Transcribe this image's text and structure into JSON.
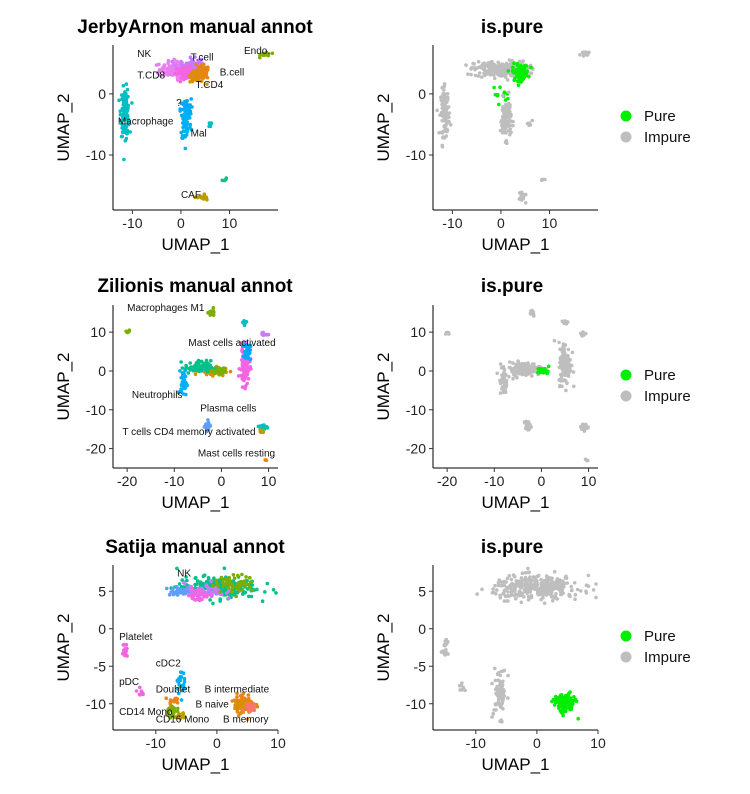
{
  "colors": {
    "pure": "#00ee00",
    "impure": "#bebebe"
  },
  "legend": {
    "items": [
      {
        "label": "Pure",
        "color": "#00ee00"
      },
      {
        "label": "Impure",
        "color": "#bebebe"
      }
    ]
  },
  "chart_data": [
    {
      "type": "scatter",
      "title": "JerbyArnon manual annot",
      "xlabel": "UMAP_1",
      "ylabel": "UMAP_2",
      "xlim": [
        -14,
        20
      ],
      "ylim": [
        -19,
        8
      ],
      "xticks": [
        -10,
        0,
        10
      ],
      "yticks": [
        -10,
        0
      ],
      "clusters": [
        {
          "label": "NK",
          "color": "#e87ef0",
          "cx": 0,
          "cy": 4,
          "rx": 4,
          "ry": 1.2,
          "n": 160
        },
        {
          "label": "T.cell",
          "color": "#c77cff",
          "cx": 2,
          "cy": 4.5,
          "rx": 2,
          "ry": 1.2,
          "n": 90
        },
        {
          "label": "T.CD8",
          "color": "#f564e3",
          "cx": 1,
          "cy": 3.5,
          "rx": 2,
          "ry": 0.8,
          "n": 60
        },
        {
          "label": "T.CD4",
          "color": "#d89000",
          "cx": 3.5,
          "cy": 3,
          "rx": 1.5,
          "ry": 1.0,
          "n": 70
        },
        {
          "label": "B.cell",
          "color": "#e68613",
          "cx": 4.5,
          "cy": 3.5,
          "rx": 1.2,
          "ry": 1.0,
          "n": 60
        },
        {
          "label": "Endo.",
          "color": "#7cae00",
          "cx": 17.5,
          "cy": 6.5,
          "rx": 1.0,
          "ry": 0.4,
          "n": 15
        },
        {
          "label": "Macrophage",
          "color": "#00bfc4",
          "cx": -11.5,
          "cy": -3,
          "rx": 0.8,
          "ry": 3.5,
          "n": 110
        },
        {
          "label": "?",
          "color": "#00a9ff",
          "cx": 1,
          "cy": -2.5,
          "rx": 1,
          "ry": 1.5,
          "n": 50
        },
        {
          "label": "Mal",
          "color": "#00b0f6",
          "cx": 1,
          "cy": -5,
          "rx": 1.0,
          "ry": 2.5,
          "n": 60
        },
        {
          "label": "CAF",
          "color": "#bb9d00",
          "cx": 4.5,
          "cy": -17,
          "rx": 1.0,
          "ry": 0.6,
          "n": 15
        },
        {
          "label": "",
          "color": "#00c08b",
          "cx": 9,
          "cy": -14,
          "rx": 0.4,
          "ry": 0.4,
          "n": 4
        },
        {
          "label": "",
          "color": "#00bfc4",
          "cx": 6,
          "cy": -5,
          "rx": 0.5,
          "ry": 0.5,
          "n": 6
        }
      ],
      "annotations": [
        {
          "text": "NK",
          "x": -9,
          "y": 6
        },
        {
          "text": "T.cell",
          "x": 2,
          "y": 5.5
        },
        {
          "text": "Endo.",
          "x": 13,
          "y": 6.5
        },
        {
          "text": "B.cell",
          "x": 8,
          "y": 3
        },
        {
          "text": "T.CD8",
          "x": -9,
          "y": 2.5
        },
        {
          "text": "T.CD4",
          "x": 3,
          "y": 1
        },
        {
          "text": "?",
          "x": -1,
          "y": -2
        },
        {
          "text": "Macrophage",
          "x": -13,
          "y": -5
        },
        {
          "text": "Mal",
          "x": 2,
          "y": -7
        },
        {
          "text": "CAF",
          "x": 0,
          "y": -17
        }
      ]
    },
    {
      "type": "scatter",
      "title": "is.pure",
      "xlabel": "UMAP_1",
      "ylabel": "UMAP_2",
      "xlim": [
        -14,
        20
      ],
      "ylim": [
        -19,
        8
      ],
      "xticks": [
        -10,
        0,
        10
      ],
      "yticks": [
        -10,
        0
      ],
      "clusters": [
        {
          "label": "Impure",
          "color": "#bebebe",
          "cx": 0,
          "cy": 4,
          "rx": 5,
          "ry": 1.2,
          "n": 230
        },
        {
          "label": "Pure",
          "color": "#00ee00",
          "cx": 4,
          "cy": 3.5,
          "rx": 1.5,
          "ry": 1.2,
          "n": 90
        },
        {
          "label": "Pure",
          "color": "#00ee00",
          "cx": 0,
          "cy": 0,
          "rx": 1.5,
          "ry": 1.2,
          "n": 12
        },
        {
          "label": "Impure",
          "color": "#bebebe",
          "cx": 17.5,
          "cy": 6.5,
          "rx": 1.0,
          "ry": 0.4,
          "n": 15
        },
        {
          "label": "Impure",
          "color": "#bebebe",
          "cx": -11.5,
          "cy": -3,
          "rx": 0.8,
          "ry": 3.5,
          "n": 110
        },
        {
          "label": "Impure",
          "color": "#bebebe",
          "cx": 1,
          "cy": -4,
          "rx": 1.0,
          "ry": 3.0,
          "n": 100
        },
        {
          "label": "Impure",
          "color": "#bebebe",
          "cx": 4.5,
          "cy": -17,
          "rx": 1.0,
          "ry": 0.6,
          "n": 15
        },
        {
          "label": "Impure",
          "color": "#bebebe",
          "cx": 9,
          "cy": -14,
          "rx": 0.4,
          "ry": 0.4,
          "n": 4
        },
        {
          "label": "Impure",
          "color": "#bebebe",
          "cx": 6,
          "cy": -5,
          "rx": 0.5,
          "ry": 0.5,
          "n": 6
        }
      ],
      "annotations": []
    },
    {
      "type": "scatter",
      "title": "Zilionis manual annot",
      "xlabel": "UMAP_1",
      "ylabel": "UMAP_2",
      "xlim": [
        -23,
        12
      ],
      "ylim": [
        -25,
        17
      ],
      "xticks": [
        -20,
        -10,
        0,
        10
      ],
      "yticks": [
        -20,
        -10,
        0,
        10
      ],
      "clusters": [
        {
          "label": "Macrophages M1",
          "color": "#7cae00",
          "cx": -2,
          "cy": 15,
          "rx": 0.6,
          "ry": 0.8,
          "n": 20
        },
        {
          "label": "",
          "color": "#7cae00",
          "cx": -20,
          "cy": 10,
          "rx": 0.5,
          "ry": 0.5,
          "n": 8
        },
        {
          "label": "",
          "color": "#00bfc4",
          "cx": 5,
          "cy": 12.5,
          "rx": 0.6,
          "ry": 0.6,
          "n": 10
        },
        {
          "label": "",
          "color": "#c77cff",
          "cx": 9,
          "cy": 9.5,
          "rx": 0.6,
          "ry": 0.6,
          "n": 8
        },
        {
          "label": "Mast cells activated",
          "color": "#f564e3",
          "cx": 5,
          "cy": 1,
          "rx": 1.0,
          "ry": 4.5,
          "n": 80
        },
        {
          "label": "",
          "color": "#00a9ff",
          "cx": 5.5,
          "cy": 5,
          "rx": 0.6,
          "ry": 2,
          "n": 40
        },
        {
          "label": "",
          "color": "#d89000",
          "cx": -2,
          "cy": 0,
          "rx": 2.5,
          "ry": 1.0,
          "n": 70
        },
        {
          "label": "",
          "color": "#00c08b",
          "cx": -5,
          "cy": 1,
          "rx": 2.5,
          "ry": 1.5,
          "n": 70
        },
        {
          "label": "",
          "color": "#7cae00",
          "cx": 0,
          "cy": 0,
          "rx": 1.5,
          "ry": 0.8,
          "n": 30
        },
        {
          "label": "Neutrophils",
          "color": "#00b0f6",
          "cx": -8,
          "cy": -3,
          "rx": 0.6,
          "ry": 3,
          "n": 40
        },
        {
          "label": "Plasma cells",
          "color": "#619cff",
          "cx": -3,
          "cy": -14,
          "rx": 0.6,
          "ry": 1.2,
          "n": 20
        },
        {
          "label": "T cells CD4 memory activated",
          "color": "#00bfc4",
          "cx": 9,
          "cy": -14.5,
          "rx": 0.8,
          "ry": 0.8,
          "n": 15
        },
        {
          "label": "Mast cells resting",
          "color": "#e68613",
          "cx": 9.5,
          "cy": -23,
          "rx": 0.3,
          "ry": 0.3,
          "n": 3
        },
        {
          "label": "",
          "color": "#bb9d00",
          "cx": 8.5,
          "cy": -15.5,
          "rx": 0.5,
          "ry": 0.5,
          "n": 8
        }
      ],
      "annotations": [
        {
          "text": "Macrophages M1",
          "x": -20,
          "y": 15.5
        },
        {
          "text": "Mast cells activated",
          "x": -7,
          "y": 6.5
        },
        {
          "text": "Neutrophils",
          "x": -19,
          "y": -7
        },
        {
          "text": "Plasma cells",
          "x": -4.5,
          "y": -10.5
        },
        {
          "text": "T cells CD4 memory activated",
          "x": -21,
          "y": -16.5
        },
        {
          "text": "Mast cells resting",
          "x": -5,
          "y": -22
        }
      ]
    },
    {
      "type": "scatter",
      "title": "is.pure",
      "xlabel": "UMAP_1",
      "ylabel": "UMAP_2",
      "xlim": [
        -23,
        12
      ],
      "ylim": [
        -25,
        17
      ],
      "xticks": [
        -20,
        -10,
        0,
        10
      ],
      "yticks": [
        -20,
        -10,
        0,
        10
      ],
      "clusters": [
        {
          "label": "Impure",
          "color": "#bebebe",
          "cx": -2,
          "cy": 15,
          "rx": 0.6,
          "ry": 0.8,
          "n": 20
        },
        {
          "label": "Impure",
          "color": "#bebebe",
          "cx": -20,
          "cy": 10,
          "rx": 0.5,
          "ry": 0.5,
          "n": 8
        },
        {
          "label": "Impure",
          "color": "#bebebe",
          "cx": 5,
          "cy": 12.5,
          "rx": 0.6,
          "ry": 0.6,
          "n": 10
        },
        {
          "label": "Impure",
          "color": "#bebebe",
          "cx": 9,
          "cy": 9.5,
          "rx": 0.6,
          "ry": 0.6,
          "n": 8
        },
        {
          "label": "Impure",
          "color": "#bebebe",
          "cx": 5,
          "cy": 2,
          "rx": 1.2,
          "ry": 5,
          "n": 120
        },
        {
          "label": "Impure",
          "color": "#bebebe",
          "cx": -4,
          "cy": 0.5,
          "rx": 3.5,
          "ry": 1.5,
          "n": 130
        },
        {
          "label": "Pure",
          "color": "#00ee00",
          "cx": 0.5,
          "cy": 0,
          "rx": 1.2,
          "ry": 0.8,
          "n": 25
        },
        {
          "label": "Impure",
          "color": "#bebebe",
          "cx": -8,
          "cy": -3,
          "rx": 0.6,
          "ry": 3,
          "n": 40
        },
        {
          "label": "Impure",
          "color": "#bebebe",
          "cx": -3,
          "cy": -14,
          "rx": 0.6,
          "ry": 1.2,
          "n": 20
        },
        {
          "label": "Impure",
          "color": "#bebebe",
          "cx": 9,
          "cy": -14.5,
          "rx": 0.8,
          "ry": 0.8,
          "n": 20
        },
        {
          "label": "Impure",
          "color": "#bebebe",
          "cx": 9.5,
          "cy": -23,
          "rx": 0.3,
          "ry": 0.3,
          "n": 3
        }
      ],
      "annotations": []
    },
    {
      "type": "scatter",
      "title": "Satija manual annot",
      "xlabel": "UMAP_1",
      "ylabel": "UMAP_2",
      "xlim": [
        -17,
        10
      ],
      "ylim": [
        -13.5,
        8.5
      ],
      "xticks": [
        -10,
        0,
        10
      ],
      "yticks": [
        -10,
        -5,
        0,
        5
      ],
      "clusters": [
        {
          "label": "NK",
          "color": "#00c08b",
          "cx": 0,
          "cy": 5.5,
          "rx": 6,
          "ry": 1.3,
          "n": 220
        },
        {
          "label": "",
          "color": "#c77cff",
          "cx": -2,
          "cy": 5,
          "rx": 3,
          "ry": 1.0,
          "n": 60
        },
        {
          "label": "",
          "color": "#7cae00",
          "cx": 3,
          "cy": 6,
          "rx": 3,
          "ry": 1.0,
          "n": 60
        },
        {
          "label": "",
          "color": "#f564e3",
          "cx": -3,
          "cy": 4.5,
          "rx": 1.5,
          "ry": 0.8,
          "n": 30
        },
        {
          "label": "",
          "color": "#619cff",
          "cx": -6,
          "cy": 5,
          "rx": 2,
          "ry": 0.5,
          "n": 30
        },
        {
          "label": "Platelet",
          "color": "#f564e3",
          "cx": -15,
          "cy": -3,
          "rx": 0.4,
          "ry": 1.2,
          "n": 18
        },
        {
          "label": "cDC2",
          "color": "#00b0f6",
          "cx": -6,
          "cy": -7,
          "rx": 0.6,
          "ry": 1.5,
          "n": 25
        },
        {
          "label": "pDC",
          "color": "#f564e3",
          "cx": -12.5,
          "cy": -8.5,
          "rx": 0.5,
          "ry": 0.5,
          "n": 8
        },
        {
          "label": "Doublet",
          "color": "#e68613",
          "cx": -7,
          "cy": -9.5,
          "rx": 0.8,
          "ry": 0.5,
          "n": 15
        },
        {
          "label": "CD14 Mono",
          "color": "#7cae00",
          "cx": -7.5,
          "cy": -11,
          "rx": 0.8,
          "ry": 0.8,
          "n": 25
        },
        {
          "label": "CD16 Mono",
          "color": "#bb9d00",
          "cx": -6,
          "cy": -11.5,
          "rx": 0.6,
          "ry": 0.5,
          "n": 12
        },
        {
          "label": "B intermediate",
          "color": "#e68613",
          "cx": 4.5,
          "cy": -10,
          "rx": 1.5,
          "ry": 1.2,
          "n": 80
        },
        {
          "label": "B naive",
          "color": "#d89000",
          "cx": 4,
          "cy": -10.5,
          "rx": 1.0,
          "ry": 0.8,
          "n": 30
        },
        {
          "label": "B memory",
          "color": "#f8766d",
          "cx": 5.5,
          "cy": -10.5,
          "rx": 0.8,
          "ry": 0.8,
          "n": 20
        }
      ],
      "annotations": [
        {
          "text": "NK",
          "x": -6.5,
          "y": 7
        },
        {
          "text": "Platelet",
          "x": -16,
          "y": -1.5
        },
        {
          "text": "cDC2",
          "x": -10,
          "y": -5
        },
        {
          "text": "pDC",
          "x": -16,
          "y": -7.5
        },
        {
          "text": "Doublet",
          "x": -10,
          "y": -8.5
        },
        {
          "text": "B intermediate",
          "x": -2,
          "y": -8.5
        },
        {
          "text": "B naive",
          "x": -3.5,
          "y": -10.5
        },
        {
          "text": "CD14 Mono",
          "x": -16,
          "y": -11.5
        },
        {
          "text": "CD16 Mono",
          "x": -10,
          "y": -12.5
        },
        {
          "text": "B memory",
          "x": 1,
          "y": -12.5
        }
      ]
    },
    {
      "type": "scatter",
      "title": "is.pure",
      "xlabel": "UMAP_1",
      "ylabel": "UMAP_2",
      "xlim": [
        -17,
        10
      ],
      "ylim": [
        -13.5,
        8.5
      ],
      "xticks": [
        -10,
        0,
        10
      ],
      "yticks": [
        -10,
        -5,
        0,
        5
      ],
      "clusters": [
        {
          "label": "Impure",
          "color": "#bebebe",
          "cx": 0,
          "cy": 5.5,
          "rx": 6.5,
          "ry": 1.4,
          "n": 330
        },
        {
          "label": "Impure",
          "color": "#bebebe",
          "cx": -15,
          "cy": -3,
          "rx": 0.4,
          "ry": 1.2,
          "n": 18
        },
        {
          "label": "Impure",
          "color": "#bebebe",
          "cx": -6,
          "cy": -8.5,
          "rx": 1.0,
          "ry": 3.0,
          "n": 70
        },
        {
          "label": "Impure",
          "color": "#bebebe",
          "cx": -12.5,
          "cy": -8,
          "rx": 0.5,
          "ry": 0.5,
          "n": 8
        },
        {
          "label": "Pure",
          "color": "#00ee00",
          "cx": 4.5,
          "cy": -10,
          "rx": 1.6,
          "ry": 1.2,
          "n": 120
        }
      ],
      "annotations": []
    }
  ]
}
